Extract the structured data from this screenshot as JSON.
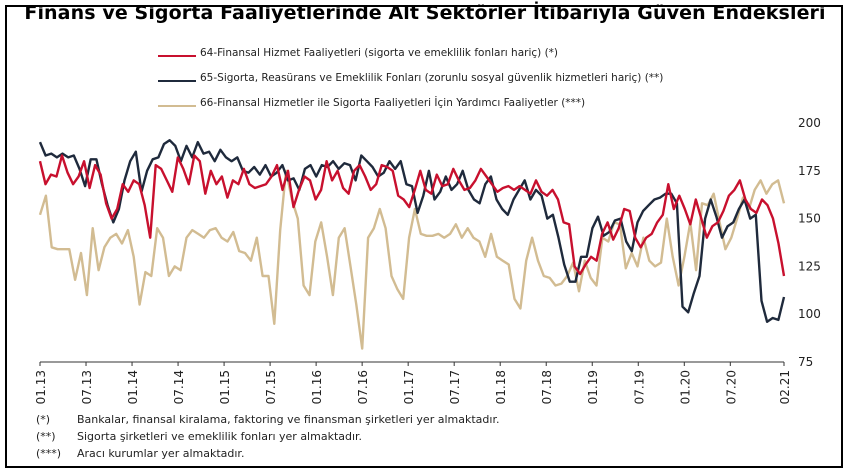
{
  "title": "Finans ve Sigorta Faaliyetlerinde Alt Sektörler İtibarıyla Güven Endeksleri",
  "footnotes": [
    {
      "mark": "(*)",
      "text": "Bankalar, finansal kiralama, faktoring ve finansman şirketleri yer almaktadır."
    },
    {
      "mark": "(**)",
      "text": "Sigorta şirketleri ve emeklilik fonları yer almaktadır."
    },
    {
      "mark": "(***)",
      "text": "Aracı kurumlar yer almaktadır."
    }
  ],
  "chart_data": {
    "type": "line",
    "title": "Finans ve Sigorta Faaliyetlerinde Alt Sektörler İtibarıyla Güven Endeksleri",
    "xlabel": "",
    "ylabel": "",
    "ylim": [
      75,
      200
    ],
    "y_ticks": [
      75,
      100,
      125,
      150,
      175,
      200
    ],
    "y_axis_side": "right",
    "x_tick_labels": [
      "01.13",
      "07.13",
      "01.14",
      "07.14",
      "01.15",
      "07.15",
      "01.16",
      "07.16",
      "01.17",
      "07.17",
      "01.18",
      "07.18",
      "01.19",
      "07.19",
      "01.20",
      "07.20",
      "02.21"
    ],
    "x_start": "2013-01",
    "x_end": "2021-02",
    "grid": false,
    "legend_position": "top-left",
    "series": [
      {
        "name": "64-Finansal Hizmet Faaliyetleri (sigorta ve emeklilik fonları hariç) (*)",
        "color": "#c8102e",
        "values": [
          180,
          168,
          173,
          172,
          183,
          174,
          168,
          172,
          180,
          166,
          178,
          173,
          158,
          150,
          155,
          168,
          164,
          170,
          168,
          157,
          140,
          178,
          176,
          170,
          164,
          182,
          176,
          168,
          183,
          180,
          163,
          175,
          168,
          172,
          161,
          170,
          168,
          176,
          168,
          166,
          167,
          168,
          172,
          178,
          165,
          175,
          156,
          165,
          172,
          170,
          160,
          165,
          180,
          170,
          175,
          166,
          163,
          175,
          178,
          172,
          165,
          168,
          178,
          177,
          175,
          162,
          160,
          156,
          165,
          175,
          165,
          163,
          173,
          167,
          168,
          176,
          170,
          165,
          166,
          170,
          176,
          172,
          168,
          164,
          166,
          167,
          165,
          167,
          165,
          163,
          170,
          164,
          162,
          165,
          160,
          148,
          147,
          125,
          121,
          126,
          130,
          128,
          142,
          148,
          139,
          145,
          155,
          154,
          140,
          135,
          140,
          142,
          148,
          152,
          168,
          155,
          162,
          155,
          147,
          160,
          150,
          140,
          146,
          148,
          154,
          162,
          165,
          170,
          160,
          155,
          153,
          160,
          157,
          150,
          137,
          120
        ]
      },
      {
        "name": "65-Sigorta, Reasürans ve Emeklilik Fonları (zorunlu sosyal güvenlik hizmetleri hariç) (**)",
        "color": "#1f2a3c",
        "values": [
          190,
          183,
          184,
          182,
          184,
          182,
          183,
          176,
          167,
          181,
          181,
          168,
          157,
          148,
          155,
          170,
          180,
          185,
          164,
          175,
          181,
          182,
          189,
          191,
          188,
          180,
          188,
          182,
          190,
          184,
          185,
          180,
          186,
          182,
          180,
          182,
          175,
          174,
          177,
          173,
          178,
          172,
          174,
          178,
          170,
          171,
          165,
          176,
          178,
          172,
          178,
          177,
          180,
          176,
          179,
          178,
          170,
          183,
          180,
          177,
          172,
          174,
          180,
          176,
          180,
          168,
          167,
          153,
          162,
          175,
          160,
          164,
          172,
          165,
          168,
          175,
          165,
          160,
          158,
          168,
          172,
          160,
          155,
          152,
          160,
          165,
          170,
          160,
          165,
          162,
          150,
          152,
          140,
          126,
          117,
          117,
          130,
          130,
          145,
          151,
          141,
          143,
          149,
          150,
          138,
          133,
          148,
          154,
          157,
          160,
          161,
          163,
          163,
          158,
          104,
          101,
          111,
          120,
          150,
          160,
          151,
          140,
          146,
          148,
          155,
          160,
          150,
          152,
          107,
          96,
          98,
          97,
          109
        ]
      },
      {
        "name": "66-Finansal Hizmetler ile Sigorta Faaliyetleri İçin Yardımcı Faaliyetler (***)",
        "color": "#d2bc92",
        "values": [
          152,
          162,
          135,
          134,
          134,
          134,
          118,
          132,
          110,
          145,
          123,
          135,
          140,
          142,
          137,
          144,
          130,
          105,
          122,
          120,
          145,
          140,
          120,
          125,
          123,
          140,
          144,
          142,
          140,
          144,
          145,
          140,
          138,
          143,
          133,
          132,
          128,
          140,
          120,
          120,
          95,
          144,
          175,
          160,
          150,
          115,
          110,
          138,
          148,
          130,
          110,
          140,
          145,
          125,
          105,
          82,
          140,
          145,
          155,
          145,
          120,
          113,
          108,
          140,
          155,
          142,
          141,
          141,
          142,
          140,
          142,
          147,
          140,
          145,
          140,
          138,
          130,
          142,
          130,
          128,
          126,
          108,
          103,
          128,
          140,
          128,
          120,
          119,
          115,
          116,
          120,
          127,
          112,
          128,
          119,
          115,
          140,
          138,
          148,
          147,
          124,
          132,
          125,
          140,
          128,
          125,
          127,
          150,
          130,
          115,
          130,
          148,
          123,
          158,
          157,
          163,
          148,
          134,
          140,
          150,
          161,
          155,
          165,
          170,
          163,
          168,
          170,
          158
        ]
      }
    ]
  }
}
